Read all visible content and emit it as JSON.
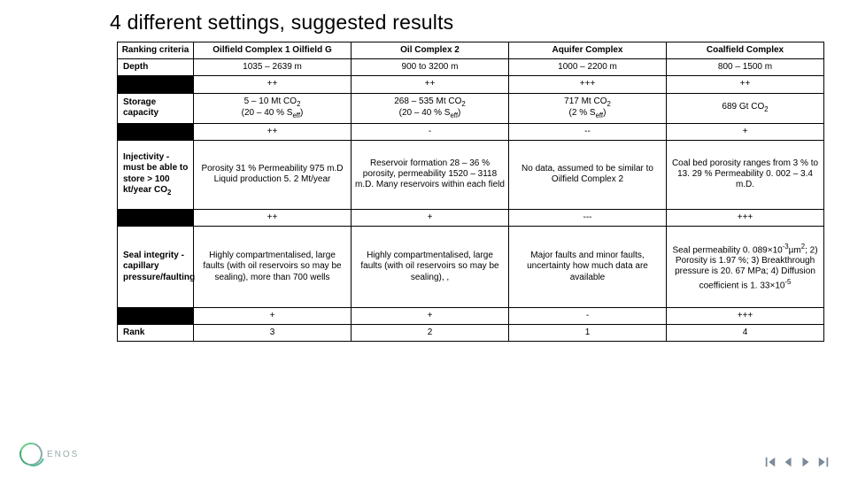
{
  "title": "4 different settings, suggested results",
  "logo_text": "ENOS",
  "columns": {
    "criteria": "Ranking criteria",
    "c1": "Oilfield Complex 1 Oilfield G",
    "c2": "Oil Complex 2",
    "c3": "Aquifer Complex",
    "c4": "Coalfield Complex"
  },
  "rows": {
    "depth": {
      "label": "Depth",
      "c1": "1035 – 2639  m",
      "c2": "900 to 3200 m",
      "c3": "1000 – 2200 m",
      "c4": "800 – 1500 m",
      "r1": "++",
      "r2": "++",
      "r3": "+++",
      "r4": "++"
    },
    "storage": {
      "label": "Storage capacity",
      "c1_html": "5 – 10 Mt CO<sub>2</sub><br>(20 – 40 % S<sub>eff</sub>)",
      "c2_html": "268 – 535 Mt CO<sub>2</sub><br>(20 – 40 % S<sub>eff</sub>)",
      "c3_html": "717 Mt CO<sub>2</sub><br>(2 % S<sub>eff</sub>)",
      "c4_html": "689 Gt CO<sub>2</sub>",
      "r1": "++",
      "r2": "-",
      "r3": "--",
      "r4": "+"
    },
    "injectivity": {
      "label_html": "Injectivity - must be able to store > 100 kt/year CO<sub>2</sub>",
      "c1": "Porosity 31 % Permeability 975 m.D Liquid production 5. 2 Mt/year",
      "c2": "Reservoir formation 28 – 36 % porosity, permeability 1520 – 3118 m.D.\nMany reservoirs within each field",
      "c3": "No data, assumed to be similar to Oilfield Complex 2",
      "c4": "Coal bed porosity ranges from 3 % to 13. 29 % Permeability 0. 002 – 3.4 m.D.",
      "r1": "++",
      "r2": "+",
      "r3": "---",
      "r4": "+++"
    },
    "seal": {
      "label": "Seal integrity - capillary pressure/faulting",
      "c1": "Highly compartmentalised, large faults (with oil reservoirs so may be sealing), more than 700 wells",
      "c2": "Highly compartmentalised, large faults (with oil reservoirs so may be sealing), ,",
      "c3": "Major faults and minor faults, uncertainty how much data are available",
      "c4_html": "Seal permeability 0. 089×10<sup>-3</sup>µm<sup>2</sup>; 2) Porosity is 1.97 %; 3) Breakthrough pressure is 20. 67 MPa; 4) Diffusion coefficient is 1. 33×10<sup>-5</sup>",
      "r1": "+",
      "r2": "+",
      "r3": "-",
      "r4": "+++"
    },
    "rank": {
      "label": "Rank",
      "c1": "3",
      "c2": "2",
      "c3": "1",
      "c4": "4"
    }
  }
}
